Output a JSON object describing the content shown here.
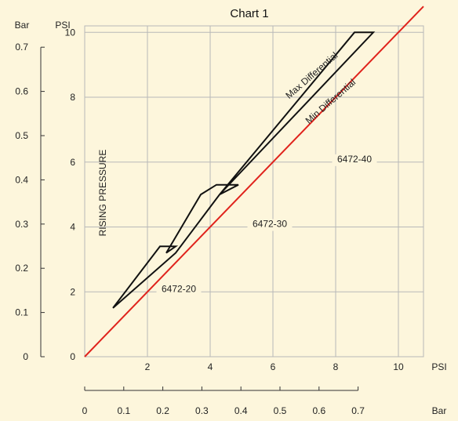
{
  "chart_data": {
    "type": "line",
    "title": "Chart 1",
    "x_unit_primary": "PSI",
    "x_unit_secondary": "Bar",
    "y_unit_primary": "PSI",
    "y_unit_secondary": "Bar",
    "ylabel": "RISING PRESSURE",
    "xlim": [
      0,
      10.8
    ],
    "ylim": [
      0,
      10.2
    ],
    "grid": true,
    "x_ticks": [
      2,
      4,
      6,
      8,
      10
    ],
    "y_ticks": [
      2,
      4,
      6,
      8,
      10
    ],
    "x_ticks_bar": [
      0,
      0.1,
      0.2,
      0.3,
      0.4,
      0.5,
      0.6,
      0.7
    ],
    "y_ticks_bar": [
      0,
      0.1,
      0.2,
      0.3,
      0.4,
      0.5,
      0.6,
      0.7
    ],
    "x_tick_labels": [
      "2",
      "4",
      "6",
      "8",
      "10"
    ],
    "y_tick_labels": [
      "2",
      "4",
      "6",
      "8",
      "10"
    ],
    "x_tick_labels_bar": [
      "0",
      "0.1",
      "0.2",
      "0.3",
      "0.4",
      "0.5",
      "0.6",
      "0.7"
    ],
    "y_tick_labels_bar": [
      "0",
      "0.1",
      "0.2",
      "0.3",
      "0.4",
      "0.5",
      "0.6",
      "0.7"
    ],
    "origin_label_psi_y": "0",
    "reference_line": {
      "color": "#e0231c",
      "x": [
        0,
        10.8
      ],
      "y": [
        0,
        10.8
      ]
    },
    "envelope_outline": {
      "color": "#111111",
      "x": [
        0.9,
        2.4,
        2.9,
        2.6,
        3.7,
        4.2,
        4.9,
        4.3,
        8.6,
        9.2,
        4.3,
        2.9,
        0.9
      ],
      "y": [
        1.5,
        3.4,
        3.4,
        3.2,
        5.0,
        5.3,
        5.3,
        5.0,
        10.0,
        10.0,
        5.0,
        3.2,
        1.5
      ]
    },
    "annotations": [
      {
        "text": "Max Differential",
        "x": 7.3,
        "y": 8.6,
        "angle_deg": -41
      },
      {
        "text": "Min Differential",
        "x": 7.9,
        "y": 7.8,
        "angle_deg": -41
      },
      {
        "text": "6472-20",
        "x": 3.0,
        "y": 2.0,
        "angle_deg": 0
      },
      {
        "text": "6472-30",
        "x": 5.9,
        "y": 4.0,
        "angle_deg": 0
      },
      {
        "text": "6472-40",
        "x": 8.6,
        "y": 6.0,
        "angle_deg": 0
      }
    ],
    "colors": {
      "background": "#fdf6dc",
      "grid": "#b8b8b8",
      "axis": "#333333"
    }
  }
}
